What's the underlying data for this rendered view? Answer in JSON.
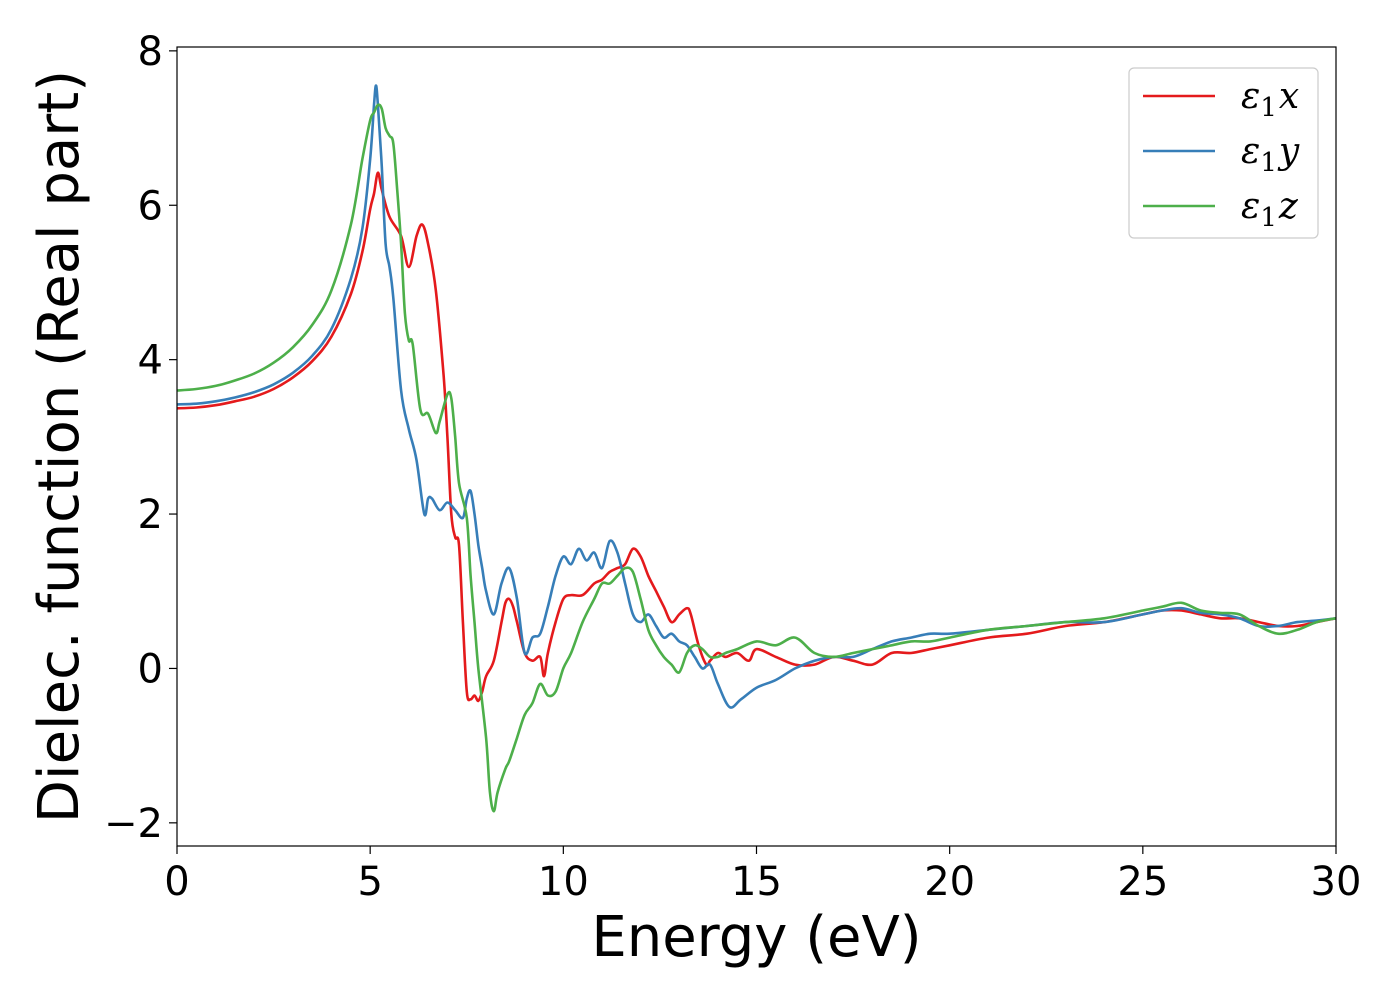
{
  "chart_data": {
    "type": "line",
    "title": "",
    "xlabel": "Energy (eV)",
    "ylabel": "Dielec. function (Real part)",
    "xlim": [
      0,
      30
    ],
    "ylim": [
      -2.3,
      8.05
    ],
    "xticks": [
      0,
      5,
      10,
      15,
      20,
      25,
      30
    ],
    "yticks": [
      -2,
      0,
      2,
      4,
      6,
      8
    ],
    "xtick_labels": [
      "0",
      "5",
      "10",
      "15",
      "20",
      "25",
      "30"
    ],
    "ytick_labels": [
      "−2",
      "0",
      "2",
      "4",
      "6",
      "8"
    ],
    "grid": false,
    "legend_position": "top-right",
    "series": [
      {
        "name": "ε1x",
        "legend": {
          "base": "ε",
          "sub": "1",
          "suffix": "x"
        },
        "color": "#e41a1c",
        "x": [
          0,
          0.5,
          1,
          1.5,
          2,
          2.5,
          3,
          3.5,
          4,
          4.5,
          4.8,
          5.0,
          5.1,
          5.2,
          5.3,
          5.5,
          5.8,
          6.0,
          6.2,
          6.35,
          6.5,
          6.7,
          6.9,
          7.0,
          7.1,
          7.2,
          7.3,
          7.4,
          7.5,
          7.6,
          7.7,
          7.8,
          7.9,
          8.0,
          8.2,
          8.4,
          8.5,
          8.6,
          8.7,
          8.8,
          9.0,
          9.2,
          9.4,
          9.5,
          9.6,
          9.8,
          10.0,
          10.2,
          10.5,
          10.8,
          11.0,
          11.2,
          11.4,
          11.6,
          11.8,
          12.0,
          12.2,
          12.4,
          12.6,
          12.8,
          13.0,
          13.2,
          13.3,
          13.5,
          13.7,
          13.8,
          14.0,
          14.2,
          14.5,
          14.8,
          15.0,
          15.5,
          16.0,
          16.5,
          17.0,
          17.5,
          18.0,
          18.5,
          19.0,
          19.5,
          20.0,
          21.0,
          22.0,
          23.0,
          24.0,
          25.0,
          25.5,
          26.0,
          26.5,
          27.0,
          27.5,
          28.0,
          28.5,
          29.0,
          29.5,
          30.0
        ],
        "values": [
          3.37,
          3.38,
          3.41,
          3.46,
          3.52,
          3.62,
          3.77,
          3.98,
          4.3,
          4.85,
          5.4,
          5.95,
          6.15,
          6.42,
          6.2,
          5.85,
          5.6,
          5.2,
          5.6,
          5.75,
          5.5,
          4.9,
          3.8,
          3.0,
          2.0,
          1.7,
          1.6,
          0.6,
          -0.3,
          -0.4,
          -0.35,
          -0.42,
          -0.3,
          -0.1,
          0.1,
          0.6,
          0.85,
          0.9,
          0.8,
          0.6,
          0.2,
          0.1,
          0.15,
          -0.1,
          0.2,
          0.6,
          0.9,
          0.95,
          0.95,
          1.1,
          1.15,
          1.25,
          1.3,
          1.35,
          1.55,
          1.45,
          1.2,
          1.0,
          0.8,
          0.6,
          0.7,
          0.78,
          0.7,
          0.3,
          0.05,
          0.1,
          0.2,
          0.15,
          0.2,
          0.1,
          0.25,
          0.15,
          0.05,
          0.05,
          0.15,
          0.1,
          0.05,
          0.2,
          0.2,
          0.25,
          0.3,
          0.4,
          0.45,
          0.55,
          0.6,
          0.7,
          0.75,
          0.75,
          0.7,
          0.65,
          0.65,
          0.6,
          0.55,
          0.55,
          0.6,
          0.65
        ]
      },
      {
        "name": "ε1y",
        "legend": {
          "base": "ε",
          "sub": "1",
          "suffix": "y"
        },
        "color": "#377eb8",
        "x": [
          0,
          0.5,
          1,
          1.5,
          2,
          2.5,
          3,
          3.5,
          4,
          4.5,
          4.8,
          5.0,
          5.1,
          5.15,
          5.2,
          5.3,
          5.4,
          5.5,
          5.6,
          5.8,
          6.0,
          6.2,
          6.4,
          6.5,
          6.6,
          6.8,
          7.0,
          7.2,
          7.4,
          7.5,
          7.6,
          7.7,
          7.8,
          7.9,
          8.0,
          8.2,
          8.4,
          8.6,
          8.8,
          9.0,
          9.2,
          9.4,
          9.6,
          9.8,
          10.0,
          10.2,
          10.4,
          10.6,
          10.8,
          11.0,
          11.2,
          11.4,
          11.6,
          11.8,
          12.0,
          12.2,
          12.4,
          12.6,
          12.8,
          13.0,
          13.2,
          13.4,
          13.6,
          13.8,
          14.0,
          14.3,
          14.6,
          15.0,
          15.5,
          16.0,
          16.5,
          17.0,
          17.5,
          18.0,
          18.5,
          19.0,
          19.5,
          20.0,
          21.0,
          22.0,
          23.0,
          24.0,
          25.0,
          25.5,
          26.0,
          26.5,
          27.0,
          27.5,
          28.0,
          28.5,
          29.0,
          29.5,
          30.0
        ],
        "values": [
          3.42,
          3.43,
          3.46,
          3.51,
          3.58,
          3.68,
          3.83,
          4.05,
          4.4,
          5.05,
          5.7,
          6.6,
          7.3,
          7.55,
          7.3,
          6.5,
          5.5,
          5.2,
          4.8,
          3.6,
          3.1,
          2.7,
          2.0,
          2.2,
          2.2,
          2.05,
          2.15,
          2.05,
          1.95,
          2.2,
          2.3,
          2.0,
          1.6,
          1.3,
          1.0,
          0.7,
          1.1,
          1.3,
          0.9,
          0.2,
          0.4,
          0.45,
          0.8,
          1.2,
          1.45,
          1.35,
          1.55,
          1.4,
          1.5,
          1.3,
          1.65,
          1.5,
          1.1,
          0.7,
          0.6,
          0.7,
          0.55,
          0.4,
          0.45,
          0.35,
          0.3,
          0.15,
          0.0,
          0.05,
          -0.2,
          -0.5,
          -0.4,
          -0.25,
          -0.15,
          0.0,
          0.1,
          0.15,
          0.15,
          0.25,
          0.35,
          0.4,
          0.45,
          0.45,
          0.5,
          0.55,
          0.6,
          0.6,
          0.7,
          0.75,
          0.78,
          0.72,
          0.7,
          0.65,
          0.55,
          0.55,
          0.6,
          0.62,
          0.65
        ]
      },
      {
        "name": "ε1z",
        "legend": {
          "base": "ε",
          "sub": "1",
          "suffix": "z"
        },
        "color": "#4daf4a",
        "x": [
          0,
          0.5,
          1,
          1.5,
          2,
          2.5,
          3,
          3.5,
          4,
          4.5,
          4.8,
          5.0,
          5.1,
          5.2,
          5.3,
          5.4,
          5.5,
          5.6,
          5.7,
          5.8,
          5.9,
          6.0,
          6.1,
          6.3,
          6.5,
          6.7,
          6.8,
          7.0,
          7.1,
          7.2,
          7.3,
          7.5,
          7.6,
          7.7,
          7.8,
          8.0,
          8.1,
          8.2,
          8.3,
          8.5,
          8.6,
          8.8,
          9.0,
          9.2,
          9.4,
          9.6,
          9.8,
          10.0,
          10.2,
          10.5,
          10.8,
          11.0,
          11.2,
          11.4,
          11.6,
          11.8,
          12.0,
          12.2,
          12.4,
          12.6,
          12.8,
          13.0,
          13.2,
          13.4,
          13.6,
          13.8,
          14.0,
          14.2,
          14.5,
          15.0,
          15.5,
          16.0,
          16.5,
          17.0,
          17.5,
          18.0,
          18.5,
          19.0,
          19.5,
          20.0,
          21.0,
          22.0,
          23.0,
          24.0,
          25.0,
          25.5,
          26.0,
          26.5,
          27.0,
          27.5,
          28.0,
          28.5,
          29.0,
          29.5,
          30.0
        ],
        "values": [
          3.6,
          3.62,
          3.66,
          3.73,
          3.82,
          3.96,
          4.16,
          4.45,
          4.9,
          5.75,
          6.6,
          7.1,
          7.2,
          7.3,
          7.25,
          7.0,
          6.9,
          6.8,
          6.2,
          5.5,
          4.6,
          4.25,
          4.2,
          3.35,
          3.3,
          3.05,
          3.2,
          3.55,
          3.5,
          3.0,
          2.4,
          1.95,
          1.2,
          0.6,
          0.0,
          -0.9,
          -1.6,
          -1.85,
          -1.6,
          -1.3,
          -1.2,
          -0.9,
          -0.6,
          -0.45,
          -0.2,
          -0.35,
          -0.3,
          0.0,
          0.2,
          0.6,
          0.9,
          1.1,
          1.1,
          1.2,
          1.3,
          1.25,
          0.9,
          0.5,
          0.3,
          0.15,
          0.05,
          -0.05,
          0.2,
          0.3,
          0.25,
          0.15,
          0.15,
          0.2,
          0.25,
          0.35,
          0.3,
          0.4,
          0.2,
          0.15,
          0.2,
          0.25,
          0.3,
          0.35,
          0.35,
          0.4,
          0.5,
          0.55,
          0.6,
          0.65,
          0.75,
          0.8,
          0.85,
          0.75,
          0.72,
          0.7,
          0.55,
          0.45,
          0.5,
          0.6,
          0.65
        ]
      }
    ]
  }
}
